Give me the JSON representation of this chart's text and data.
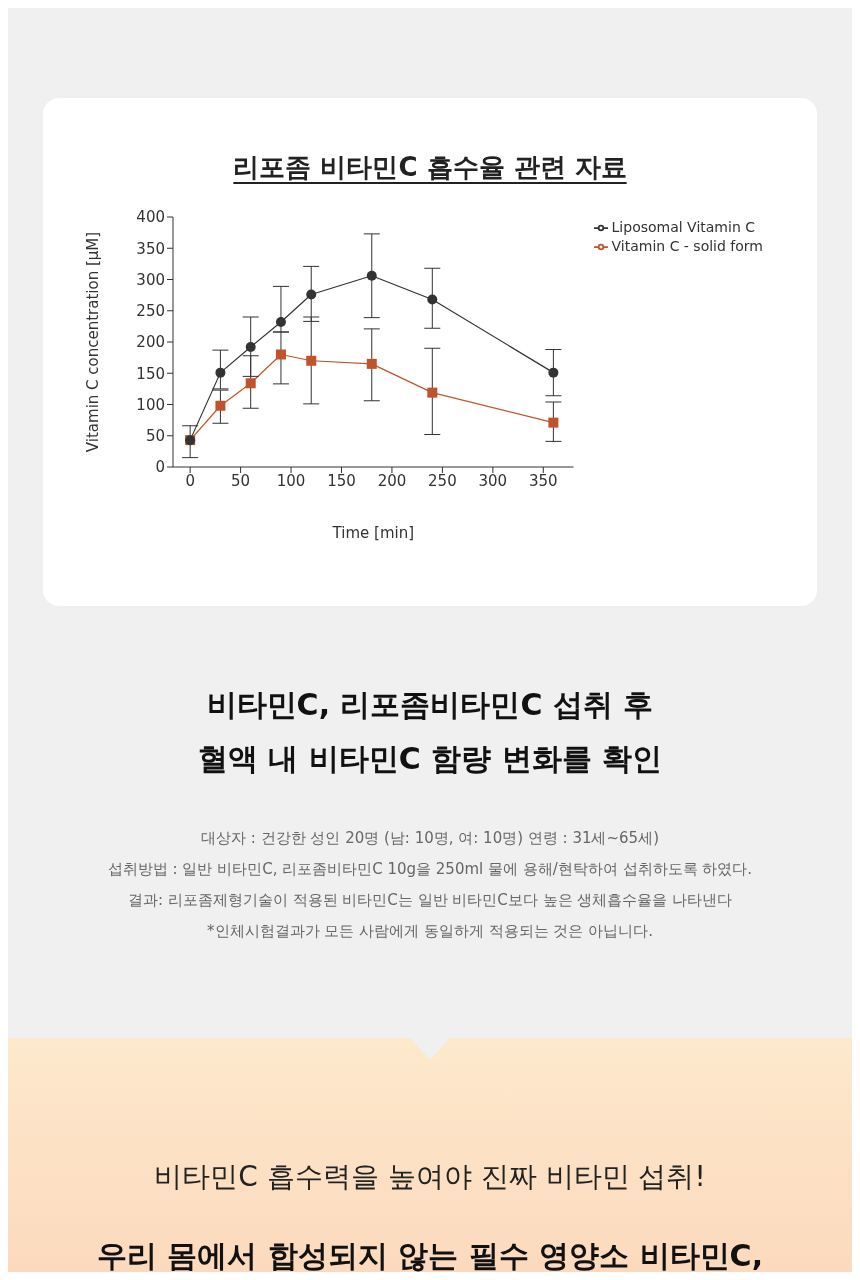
{
  "chart_data": {
    "type": "line",
    "title": "리포좀 비타민C 흡수율 관련 자료",
    "xlabel": "Time [min]",
    "ylabel": "Vitamin C concentration [μM]",
    "x": [
      0,
      30,
      60,
      90,
      120,
      180,
      240,
      360
    ],
    "series": [
      {
        "name": "Liposomal Vitamin C",
        "color": "#333333",
        "marker": "circle",
        "values": [
          43,
          151,
          192,
          232,
          276,
          306,
          268,
          151
        ],
        "errors": [
          null,
          [
            125,
            187
          ],
          [
            145,
            240
          ],
          [
            216,
            289
          ],
          [
            233,
            321
          ],
          [
            239,
            373
          ],
          [
            222,
            318
          ],
          [
            114,
            188
          ]
        ]
      },
      {
        "name": "Vitamin C - solid form",
        "color": "#c0532a",
        "marker": "square",
        "values": [
          43,
          98,
          134,
          180,
          170,
          165,
          119,
          71
        ],
        "errors": [
          [
            15,
            66
          ],
          [
            70,
            123
          ],
          [
            94,
            178
          ],
          [
            133,
            216
          ],
          [
            101,
            240
          ],
          [
            106,
            221
          ],
          [
            52,
            190
          ],
          [
            41,
            104
          ]
        ]
      }
    ],
    "xlim": [
      -17,
      380
    ],
    "xticks": [
      0,
      50,
      100,
      150,
      200,
      250,
      300,
      350
    ],
    "ylim": [
      0,
      400
    ],
    "yticks": [
      0,
      50,
      100,
      150,
      200,
      250,
      300,
      350,
      400
    ],
    "grid": false,
    "legend": "top right",
    "annotations": [
      "비타민C, 리포좀비타민C 섭취 후",
      "혈액 내 비타민C 함량 변화를 확인",
      "대상자 : 건강한 성인 20명 (남: 10명, 여: 10명) 연령 : 31세~65세)",
      "섭취방법 : 일반 비타민C, 리포좀비타민C 10g을 250ml 물에 용해/현탁하여 섭취하도록 하였다.",
      "결과: 리포좀제형기술이 적용된 비타민C는 일반 비타민C보다 높은 생체흡수율을 나타낸다",
      "*인체시험결과가 모든 사람에게 동일하게 적용되는 것은 아닙니다.",
      "비타민C 흡수력을 높여야 진짜 비타민 섭취!",
      "우리 몸에서 합성되지 않는 필수 영양소 비타민C,"
    ]
  }
}
